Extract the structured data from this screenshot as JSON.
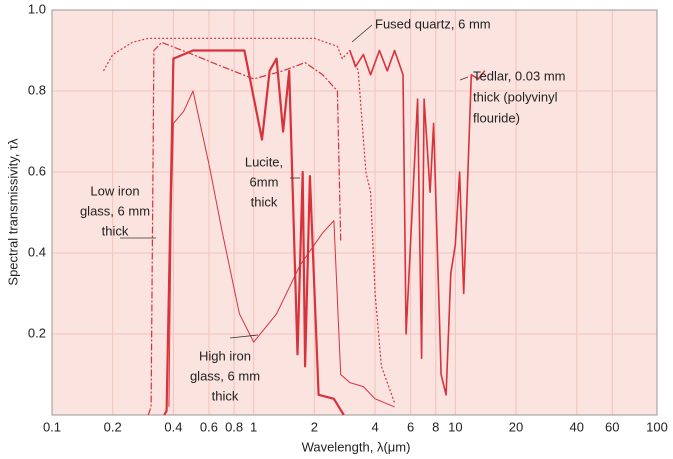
{
  "chart_data": {
    "type": "line",
    "xlabel": "Wavelength, λ(μm)",
    "ylabel": "Spectral transmissivity, τλ",
    "log_x": true,
    "grid": true,
    "xlim": [
      0.1,
      100
    ],
    "ylim": [
      0,
      1
    ],
    "xticks": [
      0.1,
      0.2,
      0.4,
      0.6,
      0.8,
      1,
      2,
      4,
      6,
      8,
      10,
      20,
      40,
      60,
      100
    ],
    "yticks": [
      0.2,
      0.4,
      0.6,
      0.8,
      {
        "value": 1,
        "label": "1.0"
      }
    ],
    "series": [
      {
        "label": [
          "Fused quartz, 6 mm"
        ],
        "color": "#d8323c",
        "line_style": "dotted",
        "x": [
          0.18,
          0.2,
          0.25,
          0.3,
          0.5,
          1,
          2,
          2.6,
          2.75,
          3,
          3.3,
          3.6,
          3.8,
          4,
          4.3,
          4.6,
          5
        ],
        "values": [
          0.85,
          0.89,
          0.92,
          0.93,
          0.93,
          0.93,
          0.93,
          0.91,
          0.88,
          0.9,
          0.85,
          0.6,
          0.55,
          0.3,
          0.12,
          0.08,
          0.03
        ]
      },
      {
        "label": [
          "Low iron",
          "glass, 6 mm",
          "thick"
        ],
        "color": "#d8323c",
        "line_style": "dashdot",
        "x": [
          0.3,
          0.31,
          0.32,
          0.35,
          0.5,
          0.7,
          1,
          1.4,
          1.8,
          2.2,
          2.6,
          2.7
        ],
        "values": [
          0,
          0.02,
          0.9,
          0.92,
          0.89,
          0.86,
          0.83,
          0.85,
          0.87,
          0.84,
          0.8,
          0.43
        ]
      },
      {
        "label": [
          "High iron",
          "glass, 6 mm",
          "thick"
        ],
        "color": "#d8323c",
        "line_style": "thin",
        "x": [
          0.38,
          0.39,
          0.4,
          0.45,
          0.5,
          0.6,
          0.7,
          0.85,
          1,
          1.3,
          1.7,
          2.2,
          2.5,
          2.7,
          3,
          3.5,
          4,
          5
        ],
        "values": [
          0.02,
          0.5,
          0.72,
          0.75,
          0.8,
          0.62,
          0.45,
          0.25,
          0.18,
          0.25,
          0.37,
          0.45,
          0.48,
          0.1,
          0.08,
          0.07,
          0.04,
          0.02
        ]
      },
      {
        "label": [
          "Lucite,",
          "6mm",
          "thick"
        ],
        "color": "#d8323c",
        "line_style": "thick",
        "x": [
          0.36,
          0.37,
          0.4,
          0.5,
          0.9,
          1.1,
          1.2,
          1.3,
          1.4,
          1.5,
          1.65,
          1.75,
          1.8,
          1.9,
          2.1,
          2.5,
          2.8
        ],
        "values": [
          0,
          0.01,
          0.88,
          0.9,
          0.9,
          0.68,
          0.85,
          0.88,
          0.7,
          0.85,
          0.15,
          0.6,
          0.12,
          0.59,
          0.05,
          0.04,
          0
        ]
      },
      {
        "label": [
          "Tedlar, 0.03 mm",
          "thick (polyvinyl",
          "flouride)"
        ],
        "color": "#d8323c",
        "line_style": "solid",
        "x": [
          3,
          3.2,
          3.5,
          3.8,
          4.2,
          4.6,
          5,
          5.5,
          5.7,
          6.5,
          6.8,
          7,
          7.5,
          7.8,
          8.5,
          9,
          9.5,
          10,
          10.5,
          11,
          12,
          13,
          14
        ],
        "values": [
          0.9,
          0.86,
          0.89,
          0.84,
          0.9,
          0.85,
          0.9,
          0.84,
          0.2,
          0.78,
          0.14,
          0.78,
          0.55,
          0.72,
          0.1,
          0.05,
          0.35,
          0.42,
          0.6,
          0.3,
          0.84,
          0.83,
          0.85
        ]
      }
    ]
  }
}
